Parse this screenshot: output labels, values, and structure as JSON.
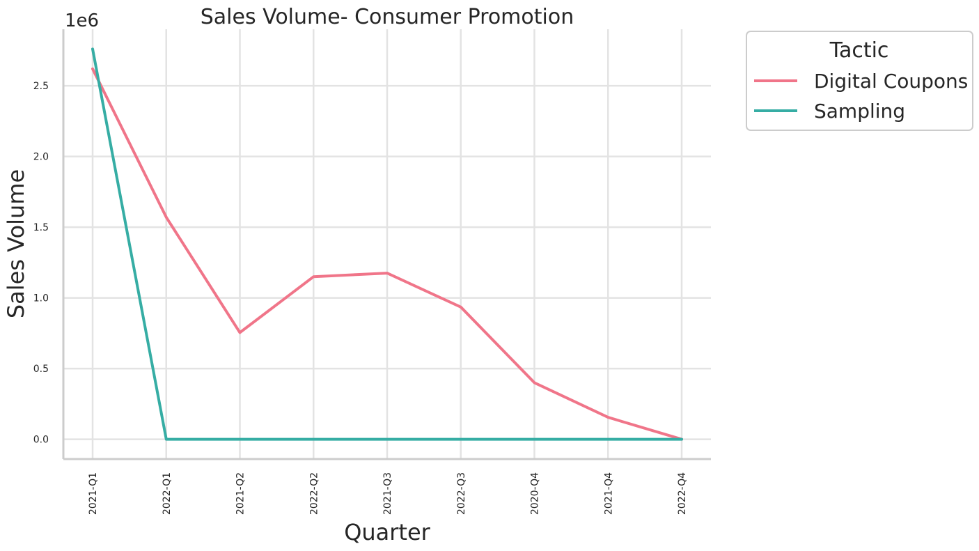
{
  "chart_data": {
    "type": "line",
    "title": "Sales Volume- Consumer Promotion",
    "xlabel": "Quarter",
    "ylabel": "Sales Volume",
    "y_multiplier_label": "1e6",
    "categories": [
      "2021-Q1",
      "2022-Q1",
      "2021-Q2",
      "2022-Q2",
      "2021-Q3",
      "2022-Q3",
      "2020-Q4",
      "2021-Q4",
      "2022-Q4"
    ],
    "yticks": [
      0.0,
      0.5,
      1.0,
      1.5,
      2.0,
      2.5
    ],
    "ytick_labels": [
      "0.0",
      "0.5",
      "1.0",
      "1.5",
      "2.0",
      "2.5"
    ],
    "ylim": [
      -0.14,
      2.9
    ],
    "grid": true,
    "legend": {
      "title": "Tactic",
      "position": "outside-top-right"
    },
    "series": [
      {
        "name": "Digital Coupons",
        "color": "#f07589",
        "values": [
          2.62,
          1.57,
          0.755,
          1.15,
          1.175,
          0.935,
          0.4,
          0.155,
          0.0
        ]
      },
      {
        "name": "Sampling",
        "color": "#36ada4",
        "values": [
          2.76,
          0.0,
          0.0,
          0.0,
          0.0,
          0.0,
          0.0,
          0.0,
          0.0
        ]
      }
    ]
  }
}
